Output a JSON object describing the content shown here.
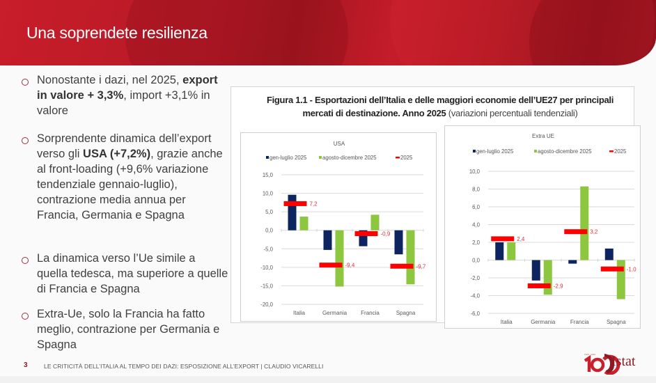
{
  "header": {
    "title": "Una soprendete resilienza"
  },
  "bullets": [
    {
      "parts": [
        {
          "t": "Nonostante i dazi, nel 2025, ",
          "b": false
        },
        {
          "t": "export in valore + 3,3%",
          "b": true
        },
        {
          "t": ", import +3,1% in valore",
          "b": false
        }
      ]
    },
    {
      "parts": [
        {
          "t": "Sorprendente dinamica dell’export verso gli ",
          "b": false
        },
        {
          "t": "USA (+7,2%)",
          "b": true
        },
        {
          "t": ", grazie anche al front-loading (+9,6% variazione tendenziale gennaio-luglio), contrazione media annua per Francia, Germania e Spagna",
          "b": false
        }
      ]
    },
    {
      "parts": [
        {
          "t": "La dinamica verso l’Ue simile a quella tedesca, ma superiore a quelle di Francia e Spagna",
          "b": false
        }
      ]
    },
    {
      "parts": [
        {
          "t": "Extra-Ue, solo la Francia ha fatto meglio, contrazione per  Germania e Spagna",
          "b": false
        }
      ]
    }
  ],
  "figure": {
    "title_bold": "Figura 1.1 - Esportazioni dell’Italia e delle maggiori economie dell’UE27 per principali mercati di destinazione. Anno 2025",
    "title_light": " (variazioni percentuali tendenziali)"
  },
  "colors": {
    "gen_luglio": "#0d2460",
    "agosto_dicembre": "#8dc63f",
    "anno": "#ff0000",
    "label": "#d9323a",
    "brand": "#8b1a24"
  },
  "chart_data": [
    {
      "type": "bar",
      "title": "USA",
      "categories": [
        "Italia",
        "Germania",
        "Francia",
        "Spagna"
      ],
      "series": [
        {
          "name": "gen-luglio 2025",
          "kind": "bar",
          "values": [
            9.6,
            -5.3,
            -4.3,
            -6.5
          ]
        },
        {
          "name": "agosto-dicembre  2025",
          "kind": "bar",
          "values": [
            3.7,
            -15.2,
            4.2,
            -14.6
          ]
        },
        {
          "name": "2025",
          "kind": "marker",
          "values": [
            7.2,
            -9.4,
            -0.9,
            -9.7
          ],
          "labels": [
            "7,2",
            "-9,4",
            "-0,9",
            "-9,7"
          ]
        }
      ],
      "ylim": [
        -20,
        15
      ],
      "yticks": [
        15,
        10,
        5,
        0,
        -5,
        -10,
        -15,
        -20
      ],
      "ytick_labels": [
        "15,0",
        "10,0",
        "5,0",
        "0,0",
        "-5,0",
        "-10,0",
        "-15,0",
        "-20,0"
      ],
      "xlabel": "",
      "ylabel": "",
      "grid": true,
      "legend": "top"
    },
    {
      "type": "bar",
      "title": "Extra UE",
      "categories": [
        "Italia",
        "Germania",
        "Francia",
        "Spagna"
      ],
      "series": [
        {
          "name": "gen-luglio 2025",
          "kind": "bar",
          "values": [
            2.0,
            -2.3,
            -0.4,
            1.3
          ]
        },
        {
          "name": "agosto-dicembre  2025",
          "kind": "bar",
          "values": [
            2.0,
            -3.9,
            8.3,
            -4.4
          ]
        },
        {
          "name": "2025",
          "kind": "marker",
          "values": [
            2.4,
            -2.9,
            3.2,
            -1.0
          ],
          "labels": [
            "2,4",
            "-2,9",
            "3,2",
            "-1,0"
          ]
        }
      ],
      "ylim": [
        -6,
        10
      ],
      "yticks": [
        10,
        8,
        6,
        4,
        2,
        0,
        -2,
        -4,
        -6
      ],
      "ytick_labels": [
        "10,0",
        "8,0",
        "6,0",
        "4,0",
        "2,0",
        "0,0",
        "-2,0",
        "-4,0",
        "-6,0"
      ],
      "xlabel": "",
      "ylabel": "",
      "grid": true,
      "legend": "top"
    }
  ],
  "footer": {
    "page_number": "3",
    "text": "LE CRITICITÀ DELL’ITALIA AL TEMPO DEI DAZI: ESPOSIZIONE ALL’EXPORT | CLAUDIO VICARELLI"
  },
  "logo": {
    "text": "Istat",
    "mark": "100"
  }
}
